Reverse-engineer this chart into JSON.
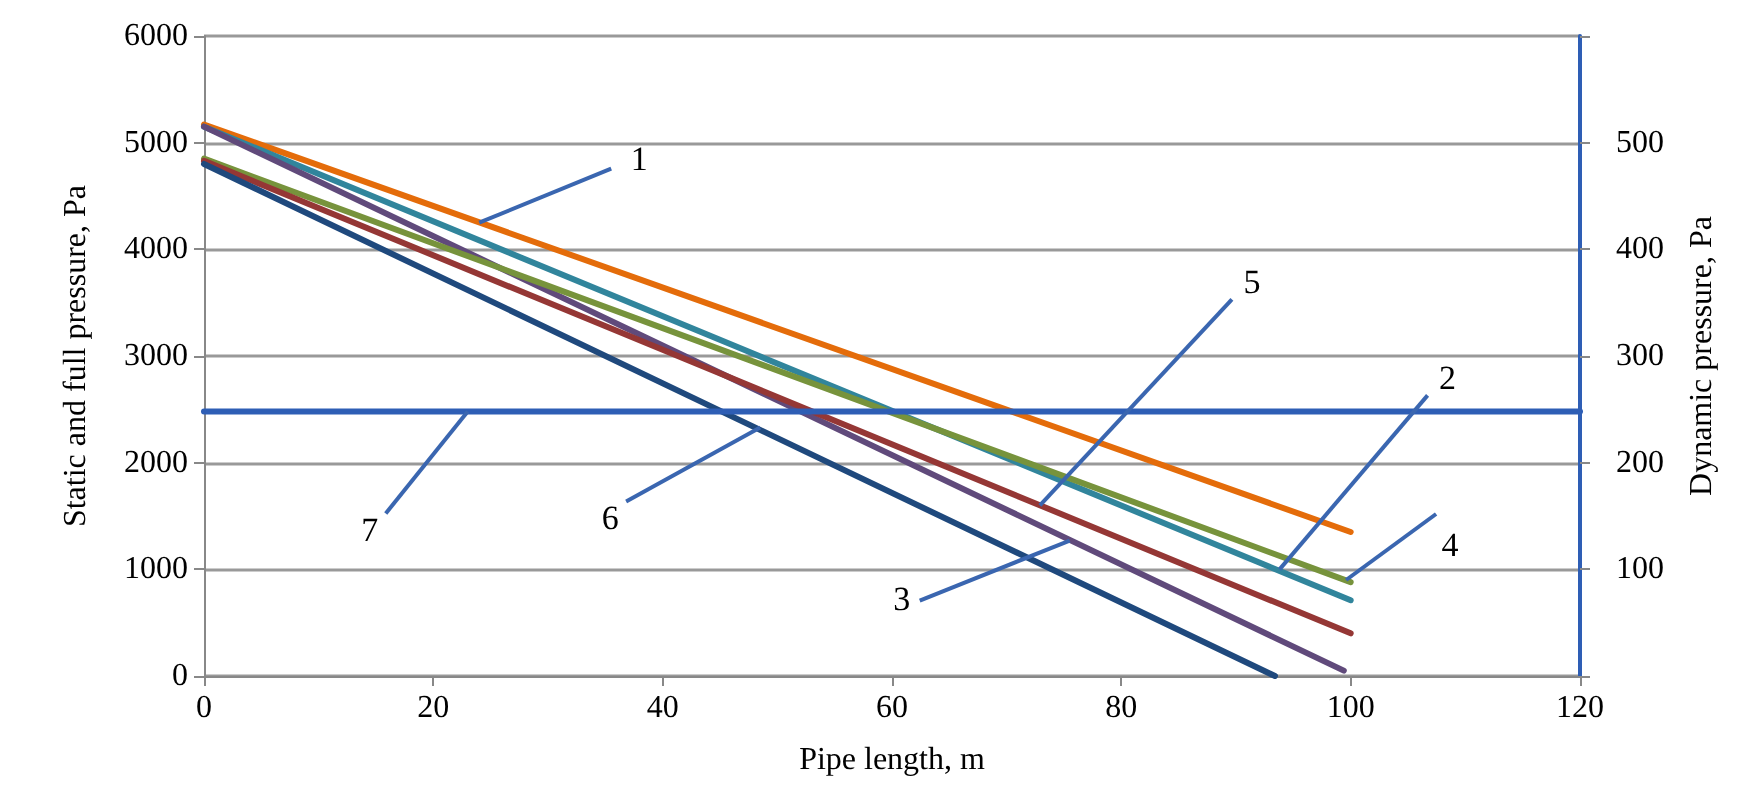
{
  "chart_data": {
    "type": "line",
    "xlabel": "Pipe length, m",
    "ylabel": "Static and full pressure, Pa",
    "y2label": "Dynamic pressure, Pa",
    "xlim": [
      0,
      120
    ],
    "xticks": [
      0,
      20,
      40,
      60,
      80,
      100,
      120
    ],
    "ylim": [
      0,
      6000
    ],
    "yticks": [
      0,
      1000,
      2000,
      3000,
      4000,
      5000,
      6000
    ],
    "y2lim": [
      0,
      600
    ],
    "y2ticks": [
      {
        "value": 0,
        "label": null
      },
      100,
      200,
      300,
      400,
      500,
      {
        "value": 600,
        "label": null
      }
    ],
    "grid": "y",
    "marker": "none",
    "line_style": "solid",
    "series": [
      {
        "color": "#e46c0a",
        "x": [
          0,
          100
        ],
        "values": [
          5170,
          1350
        ]
      },
      {
        "color": "#31859c",
        "x": [
          0,
          100
        ],
        "values": [
          5150,
          710
        ]
      },
      {
        "color": "#604a7b",
        "x": [
          0,
          99.4
        ],
        "values": [
          5150,
          50
        ]
      },
      {
        "color": "#77933c",
        "x": [
          0,
          100
        ],
        "values": [
          4850,
          880
        ]
      },
      {
        "color": "#953735",
        "x": [
          0,
          100
        ],
        "values": [
          4830,
          400
        ]
      },
      {
        "color": "#1f497d",
        "x": [
          0,
          93.4
        ],
        "values": [
          4800,
          0
        ]
      },
      {
        "color": "#2e5eb5",
        "x": [
          0,
          120
        ],
        "values": [
          2480,
          2480
        ]
      }
    ],
    "annotations": [
      {
        "text": "1",
        "x": 24,
        "y": 4250
      },
      {
        "text": "2",
        "x": 93.8,
        "y": 1000
      },
      {
        "text": "3",
        "x": 75.5,
        "y": 1270
      },
      {
        "text": "4",
        "x": 99.6,
        "y": 900
      },
      {
        "text": "5",
        "x": 72.9,
        "y": 1600
      },
      {
        "text": "6",
        "x": 48.5,
        "y": 2330
      },
      {
        "text": "7",
        "x": 23,
        "y": 2480
      }
    ]
  }
}
